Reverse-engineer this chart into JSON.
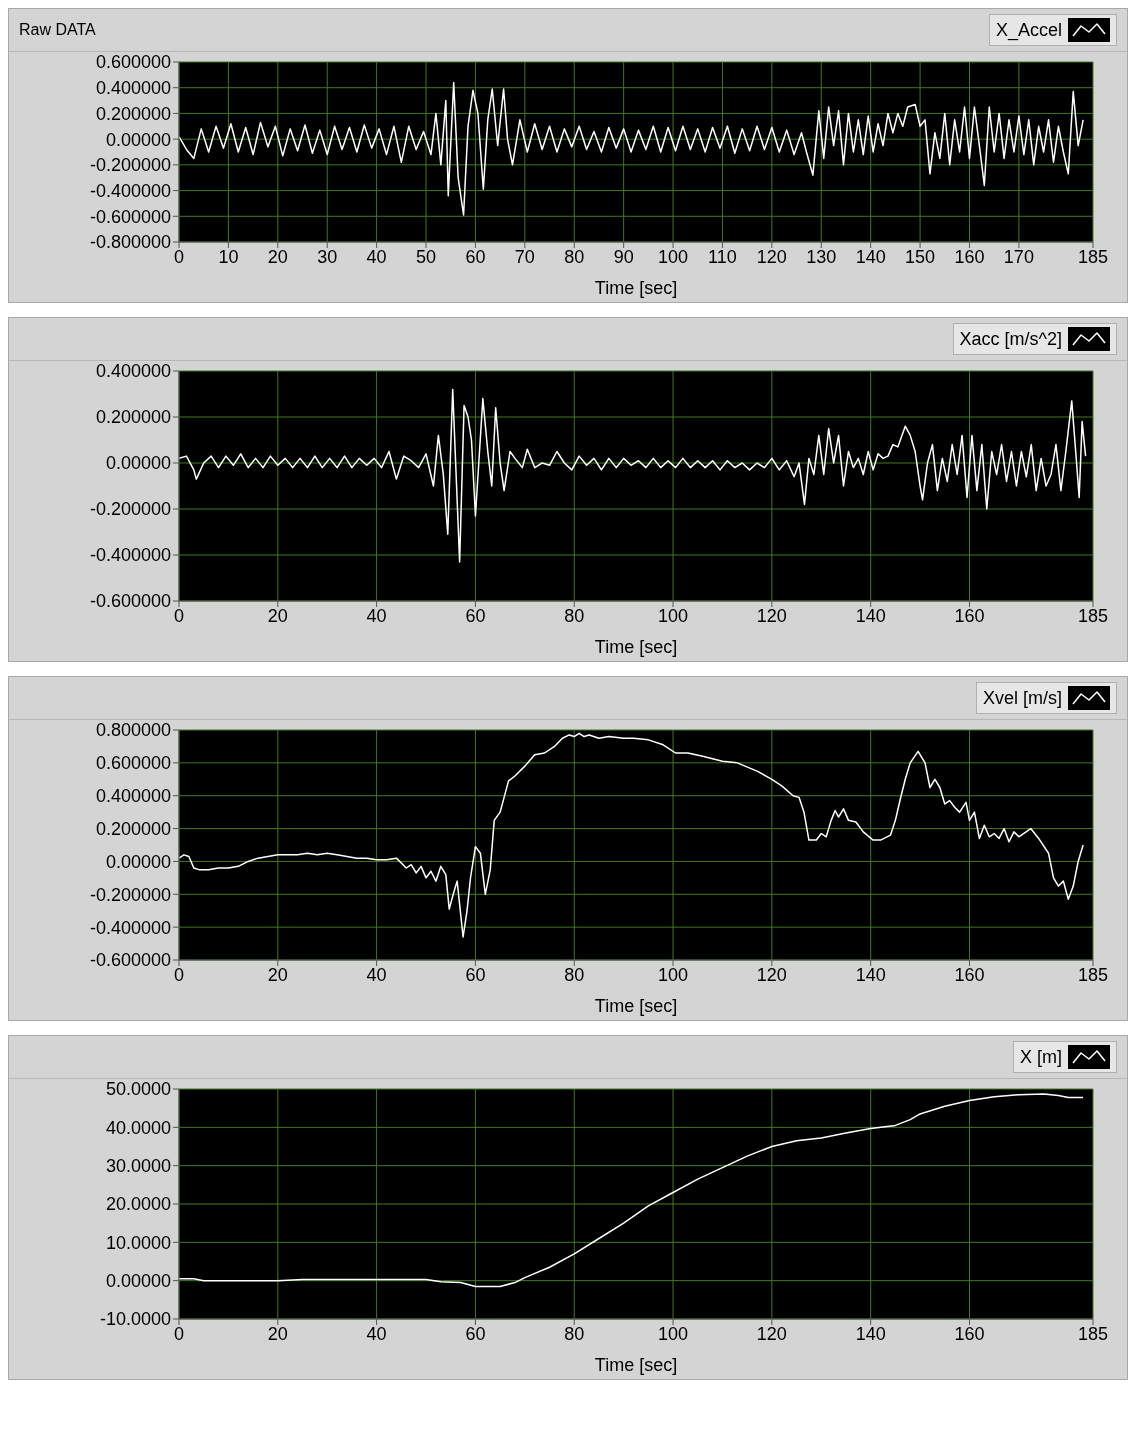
{
  "chart_data": [
    {
      "type": "line",
      "title": "Raw DATA",
      "xlabel": "Time [sec]",
      "legend": "top right",
      "grid": true,
      "xlim": [
        0,
        185
      ],
      "xticks": [
        0,
        10,
        20,
        30,
        40,
        50,
        60,
        70,
        80,
        90,
        100,
        110,
        120,
        130,
        140,
        150,
        160,
        170,
        185
      ],
      "ylim": [
        -0.8,
        0.6
      ],
      "yticks": [
        {
          "value": 0.6,
          "label": "0.600000"
        },
        {
          "value": 0.4,
          "label": "0.400000"
        },
        {
          "value": 0.2,
          "label": "0.200000"
        },
        {
          "value": 0,
          "label": "0.00000"
        },
        {
          "value": -0.2,
          "label": "-0.200000"
        },
        {
          "value": -0.4,
          "label": "-0.400000"
        },
        {
          "value": -0.6,
          "label": "-0.600000"
        },
        {
          "value": -0.8,
          "label": "-0.800000"
        }
      ],
      "series": [
        {
          "name": "X_Accel",
          "color": "#ffffff",
          "x": [
            0,
            1.5,
            3,
            4.5,
            6,
            7.5,
            9,
            10.5,
            12,
            13.5,
            15,
            16.5,
            18,
            19.5,
            21,
            22.5,
            24,
            25.5,
            27,
            28.5,
            30,
            31.5,
            33,
            34.5,
            36,
            37.5,
            39,
            40.5,
            42,
            43.5,
            45,
            46.5,
            48,
            49.5,
            51,
            52,
            53,
            54,
            54.5,
            55.6,
            56.5,
            57.6,
            58.5,
            59.5,
            60.5,
            61.6,
            62.5,
            63.4,
            64.5,
            65.7,
            66.5,
            67.5,
            69,
            70.5,
            72,
            73.5,
            75,
            76.5,
            78,
            79.5,
            81,
            82.5,
            84,
            85.5,
            87,
            88.5,
            90,
            91.5,
            93,
            94.5,
            96,
            97.5,
            99,
            100.5,
            102,
            103.5,
            105,
            106.5,
            108,
            109.5,
            111,
            112.5,
            114,
            115.5,
            117,
            118.5,
            120,
            121.5,
            123,
            124.5,
            126,
            127,
            128.3,
            129.5,
            130.5,
            131.5,
            132.5,
            133.5,
            134.5,
            135.5,
            136.5,
            137.5,
            138.5,
            139.5,
            140.5,
            141.5,
            142.5,
            143.5,
            144.5,
            145.5,
            146.5,
            147.5,
            149,
            150,
            151,
            152,
            153,
            154,
            155,
            156,
            157,
            158,
            159,
            160,
            161,
            162,
            163,
            164,
            165,
            166,
            167,
            168,
            169,
            170,
            171,
            172,
            173,
            174,
            175,
            176,
            177,
            178,
            179,
            180,
            181,
            182,
            183
          ],
          "values": [
            0.02,
            -0.08,
            -0.15,
            0.08,
            -0.1,
            0.1,
            -0.07,
            0.12,
            -0.1,
            0.09,
            -0.12,
            0.13,
            -0.06,
            0.1,
            -0.13,
            0.08,
            -0.09,
            0.11,
            -0.11,
            0.07,
            -0.12,
            0.1,
            -0.08,
            0.09,
            -0.1,
            0.11,
            -0.07,
            0.08,
            -0.12,
            0.1,
            -0.18,
            0.1,
            -0.08,
            0.06,
            -0.12,
            0.2,
            -0.2,
            0.3,
            -0.44,
            0.44,
            -0.3,
            -0.59,
            0.1,
            0.38,
            0.2,
            -0.39,
            0.15,
            0.39,
            -0.05,
            0.39,
            0,
            -0.2,
            0.15,
            -0.1,
            0.12,
            -0.08,
            0.1,
            -0.1,
            0.08,
            -0.06,
            0.1,
            -0.08,
            0.06,
            -0.1,
            0.09,
            -0.07,
            0.08,
            -0.1,
            0.07,
            -0.08,
            0.1,
            -0.1,
            0.09,
            -0.09,
            0.1,
            -0.08,
            0.08,
            -0.1,
            0.09,
            -0.07,
            0.1,
            -0.11,
            0.08,
            -0.09,
            0.1,
            -0.08,
            0.09,
            -0.1,
            0.07,
            -0.12,
            0.05,
            -0.1,
            -0.28,
            0.22,
            -0.15,
            0.25,
            -0.05,
            0.22,
            -0.2,
            0.2,
            -0.1,
            0.15,
            -0.12,
            0.18,
            -0.1,
            0.12,
            -0.05,
            0.2,
            0.05,
            0.2,
            0.1,
            0.25,
            0.27,
            0.1,
            0.15,
            -0.27,
            0.05,
            -0.15,
            0.2,
            -0.2,
            0.15,
            -0.1,
            0.25,
            -0.15,
            0.25,
            -0.05,
            -0.36,
            0.25,
            -0.1,
            0.2,
            -0.15,
            0.15,
            -0.1,
            0.18,
            -0.12,
            0.15,
            -0.2,
            0.1,
            -0.1,
            0.15,
            -0.18,
            0.1,
            -0.1,
            -0.27,
            0.37,
            -0.05,
            0.15
          ]
        }
      ]
    },
    {
      "type": "line",
      "xlabel": "Time [sec]",
      "legend": "top right",
      "grid": true,
      "xlim": [
        0,
        185
      ],
      "xticks": [
        0,
        20,
        40,
        60,
        80,
        100,
        120,
        140,
        160,
        185
      ],
      "ylim": [
        -0.6,
        0.4
      ],
      "yticks": [
        {
          "value": 0.4,
          "label": "0.400000"
        },
        {
          "value": 0.2,
          "label": "0.200000"
        },
        {
          "value": 0,
          "label": "0.00000"
        },
        {
          "value": -0.2,
          "label": "-0.200000"
        },
        {
          "value": -0.4,
          "label": "-0.400000"
        },
        {
          "value": -0.6,
          "label": "-0.600000"
        }
      ],
      "series": [
        {
          "name": "Xacc [m/s^2]",
          "color": "#ffffff",
          "x": [
            0,
            1.5,
            3,
            3.5,
            5,
            6.5,
            8,
            9.5,
            11,
            12.5,
            14,
            15.5,
            17,
            18.5,
            20,
            21.5,
            23,
            24.5,
            26,
            27.5,
            29,
            30.5,
            32,
            33.5,
            35,
            36.5,
            38,
            39.5,
            41,
            42.5,
            44,
            45.5,
            47,
            48.5,
            50,
            51.5,
            52.5,
            53.5,
            54.4,
            55.4,
            56.8,
            57.7,
            58.5,
            59.2,
            60,
            61.5,
            62.5,
            63.3,
            64.1,
            65,
            65.8,
            67,
            68,
            69.5,
            70.5,
            72,
            73.5,
            75,
            76.5,
            78,
            79.5,
            81,
            82.5,
            84,
            85.5,
            87,
            88.5,
            90,
            91.5,
            93,
            94.5,
            96,
            97.5,
            99,
            100.5,
            102,
            103.5,
            105,
            106.5,
            108,
            109.5,
            111,
            112.5,
            114,
            115.5,
            117,
            118.5,
            120,
            121.5,
            123,
            124.5,
            125.5,
            126.6,
            127.5,
            128.5,
            129.5,
            130.5,
            131.5,
            132.5,
            133.5,
            134.5,
            135.5,
            136.5,
            137.5,
            138.5,
            139.5,
            140.5,
            141.5,
            142.5,
            143.5,
            144.5,
            145.5,
            147,
            148,
            149,
            150,
            150.5,
            151.5,
            152.5,
            153.5,
            154.5,
            155.5,
            156.5,
            157.5,
            158.5,
            159.5,
            160.5,
            161.5,
            162.5,
            163.5,
            164.5,
            165.5,
            166.5,
            167.5,
            168.5,
            169.5,
            170.5,
            171.5,
            172.5,
            173.5,
            174.5,
            175.5,
            176.5,
            177.5,
            178.5,
            179.5,
            180.7,
            181.5,
            182.2,
            182.8,
            183.5
          ],
          "values": [
            0.02,
            0.03,
            -0.03,
            -0.07,
            0,
            0.03,
            -0.02,
            0.03,
            -0.01,
            0.04,
            -0.02,
            0.02,
            -0.02,
            0.03,
            -0.01,
            0.02,
            -0.02,
            0.02,
            -0.02,
            0.03,
            -0.02,
            0.02,
            -0.02,
            0.03,
            -0.02,
            0.02,
            -0.01,
            0.02,
            -0.02,
            0.05,
            -0.07,
            0.03,
            0.01,
            -0.02,
            0.04,
            -0.1,
            0.12,
            -0.05,
            -0.31,
            0.32,
            -0.43,
            0.25,
            0.2,
            0.1,
            -0.23,
            0.28,
            0.05,
            -0.1,
            0.24,
            0,
            -0.12,
            0.05,
            0.02,
            -0.02,
            0.06,
            -0.02,
            0,
            -0.01,
            0.05,
            0,
            -0.03,
            0.03,
            -0.01,
            0.02,
            -0.03,
            0.02,
            -0.02,
            0.02,
            -0.01,
            0.01,
            -0.02,
            0.02,
            -0.02,
            0.01,
            -0.02,
            0.02,
            -0.02,
            0.01,
            -0.02,
            0.01,
            -0.03,
            0.01,
            -0.02,
            0,
            -0.03,
            0,
            -0.02,
            0.02,
            -0.03,
            0.01,
            -0.06,
            0,
            -0.18,
            0.02,
            -0.05,
            0.12,
            -0.05,
            0.15,
            0,
            0.12,
            -0.1,
            0.05,
            -0.02,
            0.02,
            -0.05,
            0.05,
            -0.03,
            0.04,
            0.02,
            0.03,
            0.08,
            0.07,
            0.16,
            0.12,
            0.05,
            -0.1,
            -0.16,
            0,
            0.08,
            -0.12,
            0.02,
            -0.08,
            0.08,
            -0.05,
            0.12,
            -0.15,
            0.12,
            -0.12,
            0.08,
            -0.2,
            0.05,
            -0.05,
            0.08,
            -0.08,
            0.05,
            -0.1,
            0.05,
            -0.06,
            0.08,
            -0.12,
            0.02,
            -0.1,
            -0.05,
            0.08,
            -0.12,
            0.05,
            0.27,
            0.05,
            -0.15,
            0.18,
            0.03
          ]
        }
      ]
    },
    {
      "type": "line",
      "xlabel": "Time [sec]",
      "legend": "top right",
      "grid": true,
      "xlim": [
        0,
        185
      ],
      "xticks": [
        0,
        20,
        40,
        60,
        80,
        100,
        120,
        140,
        160,
        185
      ],
      "ylim": [
        -0.6,
        0.8
      ],
      "yticks": [
        {
          "value": 0.8,
          "label": "0.800000"
        },
        {
          "value": 0.6,
          "label": "0.600000"
        },
        {
          "value": 0.4,
          "label": "0.400000"
        },
        {
          "value": 0.2,
          "label": "0.200000"
        },
        {
          "value": 0,
          "label": "0.00000"
        },
        {
          "value": -0.2,
          "label": "-0.200000"
        },
        {
          "value": -0.4,
          "label": "-0.400000"
        },
        {
          "value": -0.6,
          "label": "-0.600000"
        }
      ],
      "series": [
        {
          "name": "Xvel [m/s]",
          "color": "#ffffff",
          "x": [
            0,
            1,
            2,
            3,
            4,
            6,
            8,
            10,
            12,
            14,
            16,
            18,
            20,
            22,
            24,
            26,
            28,
            30,
            32,
            34,
            36,
            38,
            40,
            42,
            44,
            46,
            47,
            48,
            49,
            50,
            51,
            52,
            53,
            54,
            54.7,
            55.5,
            56.3,
            57.5,
            58.3,
            59,
            60,
            61,
            62,
            63,
            63.8,
            65,
            66.7,
            68,
            70,
            72,
            74,
            76,
            77.6,
            79,
            80,
            81,
            82,
            83,
            85,
            87,
            90,
            92,
            95,
            98,
            100.5,
            103,
            106,
            110,
            113,
            117,
            120,
            122,
            124.3,
            125.5,
            126.5,
            127.5,
            129,
            130,
            131,
            132,
            132.8,
            133.5,
            134.5,
            135.5,
            137,
            138.5,
            140.5,
            142,
            144,
            145,
            146,
            147,
            148,
            149.6,
            151,
            152,
            153,
            154,
            155,
            156,
            157,
            158,
            159.3,
            160,
            161,
            162,
            163,
            164,
            165,
            166,
            167,
            168,
            169,
            170,
            172.4,
            174,
            176,
            177,
            178,
            179,
            180,
            181,
            182,
            183
          ],
          "values": [
            0.02,
            0.04,
            0.03,
            -0.04,
            -0.05,
            -0.05,
            -0.04,
            -0.04,
            -0.03,
            0,
            0.02,
            0.03,
            0.04,
            0.04,
            0.04,
            0.05,
            0.04,
            0.05,
            0.04,
            0.03,
            0.02,
            0.02,
            0.01,
            0.01,
            0.02,
            -0.04,
            -0.02,
            -0.07,
            -0.03,
            -0.1,
            -0.06,
            -0.12,
            -0.03,
            -0.08,
            -0.29,
            -0.2,
            -0.12,
            -0.46,
            -0.3,
            -0.1,
            0.09,
            0.05,
            -0.2,
            -0.05,
            0.25,
            0.3,
            0.49,
            0.52,
            0.58,
            0.65,
            0.66,
            0.7,
            0.75,
            0.77,
            0.76,
            0.78,
            0.76,
            0.77,
            0.75,
            0.76,
            0.75,
            0.75,
            0.74,
            0.71,
            0.66,
            0.66,
            0.64,
            0.61,
            0.6,
            0.55,
            0.5,
            0.46,
            0.4,
            0.39,
            0.3,
            0.13,
            0.13,
            0.17,
            0.15,
            0.25,
            0.31,
            0.27,
            0.32,
            0.25,
            0.24,
            0.18,
            0.13,
            0.13,
            0.16,
            0.25,
            0.38,
            0.5,
            0.6,
            0.67,
            0.6,
            0.45,
            0.5,
            0.45,
            0.35,
            0.37,
            0.33,
            0.3,
            0.36,
            0.25,
            0.3,
            0.14,
            0.22,
            0.15,
            0.17,
            0.14,
            0.2,
            0.12,
            0.18,
            0.15,
            0.2,
            0.14,
            0.05,
            -0.1,
            -0.15,
            -0.12,
            -0.23,
            -0.15,
            0,
            0.1
          ]
        }
      ]
    },
    {
      "type": "line",
      "xlabel": "Time [sec]",
      "legend": "top right",
      "grid": true,
      "xlim": [
        0,
        185
      ],
      "xticks": [
        0,
        20,
        40,
        60,
        80,
        100,
        120,
        140,
        160,
        185
      ],
      "ylim": [
        -10,
        50
      ],
      "yticks": [
        {
          "value": 50,
          "label": "50.0000"
        },
        {
          "value": 40,
          "label": "40.0000"
        },
        {
          "value": 30,
          "label": "30.0000"
        },
        {
          "value": 20,
          "label": "20.0000"
        },
        {
          "value": 10,
          "label": "10.0000"
        },
        {
          "value": 0,
          "label": "0.00000"
        },
        {
          "value": -10,
          "label": "-10.0000"
        }
      ],
      "series": [
        {
          "name": "X [m]",
          "color": "#ffffff",
          "x": [
            0,
            3,
            5,
            10,
            20,
            25,
            30,
            40,
            50,
            53,
            57,
            60,
            65,
            68,
            70,
            75,
            80,
            85,
            90,
            95,
            100,
            105,
            110,
            115,
            120,
            125,
            130,
            135,
            140,
            145,
            148,
            150,
            155,
            160,
            165,
            170,
            175,
            178,
            180,
            183
          ],
          "values": [
            0.5,
            0.5,
            0,
            0,
            0,
            0.3,
            0.3,
            0.3,
            0.3,
            -0.3,
            -0.5,
            -1.5,
            -1.5,
            -0.5,
            0.8,
            3.5,
            7,
            11,
            15,
            19.5,
            23,
            26.5,
            29.5,
            32.5,
            35,
            36.5,
            37.2,
            38.5,
            39.7,
            40.5,
            42,
            43.5,
            45.5,
            47,
            48,
            48.5,
            48.7,
            48.3,
            47.8,
            47.8
          ]
        }
      ]
    }
  ]
}
